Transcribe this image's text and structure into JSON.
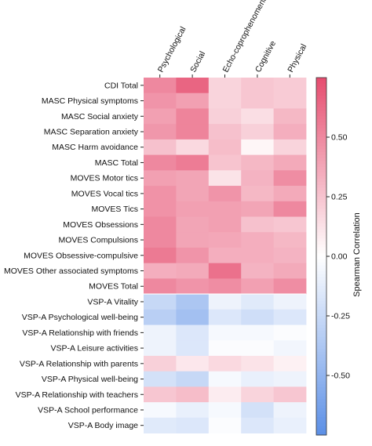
{
  "chart_data": {
    "type": "heatmap",
    "title": "",
    "xlabel": "",
    "ylabel": "",
    "columns": [
      "Psychological",
      "Social",
      "Echo-coprophenomena",
      "Cognitive",
      "Physical"
    ],
    "rows": [
      "CDI Total",
      "MASC Physical symptoms",
      "MASC Social anxiety",
      "MASC Separation anxiety",
      "MASC Harm avoidance",
      "MASC Total",
      "MOVES Motor tics",
      "MOVES Vocal tics",
      "MOVES Tics",
      "MOVES Obsessions",
      "MOVES Compulsions",
      "MOVES Obsessive-compulsive",
      "MOVES Other associated symptoms",
      "MOVES Total",
      "VSP-A Vitality",
      "VSP-A Psychological well-being",
      "VSP-A Relationship with friends",
      "VSP-A Leisure activities",
      "VSP-A Relationship with parents",
      "VSP-A Physical well-being",
      "VSP-A Relationship with teachers",
      "VSP-A School performance",
      "VSP-A Body image"
    ],
    "values": [
      [
        0.5,
        0.65,
        0.18,
        0.24,
        0.22
      ],
      [
        0.45,
        0.4,
        0.18,
        0.24,
        0.22
      ],
      [
        0.4,
        0.52,
        0.2,
        0.14,
        0.3
      ],
      [
        0.44,
        0.52,
        0.26,
        0.2,
        0.34
      ],
      [
        0.26,
        0.16,
        0.28,
        0.04,
        0.18
      ],
      [
        0.5,
        0.55,
        0.25,
        0.3,
        0.36
      ],
      [
        0.4,
        0.38,
        0.12,
        0.32,
        0.48
      ],
      [
        0.46,
        0.38,
        0.45,
        0.3,
        0.36
      ],
      [
        0.46,
        0.4,
        0.4,
        0.38,
        0.5
      ],
      [
        0.5,
        0.38,
        0.4,
        0.26,
        0.24
      ],
      [
        0.5,
        0.38,
        0.37,
        0.34,
        0.3
      ],
      [
        0.56,
        0.45,
        0.34,
        0.34,
        0.32
      ],
      [
        0.34,
        0.36,
        0.6,
        0.32,
        0.36
      ],
      [
        0.5,
        0.45,
        0.48,
        0.4,
        0.48
      ],
      [
        -0.26,
        -0.38,
        -0.08,
        -0.14,
        -0.08
      ],
      [
        -0.32,
        -0.42,
        -0.16,
        -0.22,
        -0.16
      ],
      [
        -0.08,
        -0.16,
        -0.04,
        -0.04,
        -0.02
      ],
      [
        -0.08,
        -0.16,
        -0.02,
        -0.02,
        -0.06
      ],
      [
        0.2,
        0.1,
        0.16,
        0.12,
        0.06
      ],
      [
        -0.2,
        -0.26,
        -0.04,
        -0.1,
        -0.08
      ],
      [
        0.24,
        0.28,
        0.08,
        0.18,
        0.24
      ],
      [
        -0.04,
        -0.1,
        -0.04,
        -0.2,
        -0.08
      ],
      [
        -0.14,
        -0.16,
        -0.02,
        -0.16,
        -0.1
      ]
    ],
    "colorbar": {
      "label": "Spearman Correlation",
      "range": [
        -0.75,
        0.75
      ],
      "ticks": [
        0.5,
        0.25,
        0.0,
        -0.25,
        -0.5
      ],
      "tick_labels": [
        "0.50",
        "0.25",
        "0.00",
        "-0.25",
        "-0.50"
      ],
      "colors": {
        "negative": "#5b8fe6",
        "neutral": "#ffffff",
        "positive": "#e64d6f"
      }
    },
    "grid": false,
    "legend": "right"
  }
}
